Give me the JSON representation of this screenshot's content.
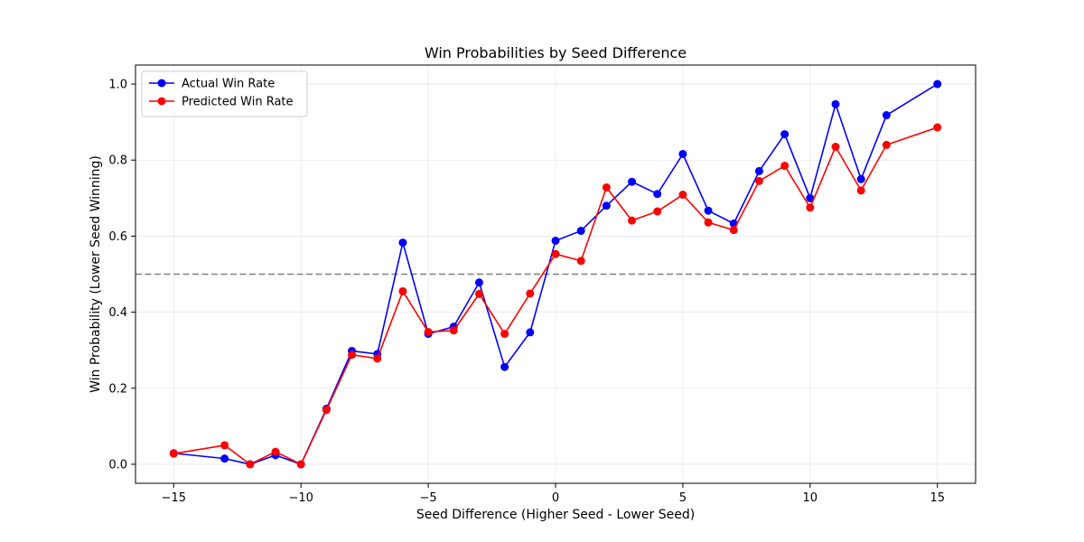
{
  "chart_data": {
    "type": "line",
    "title": "Win Probabilities by Seed Difference",
    "xlabel": "Seed Difference (Higher Seed - Lower Seed)",
    "ylabel": "Win Probability (Lower Seed Winning)",
    "xlim": [
      -16.5,
      16.5
    ],
    "ylim": [
      -0.05,
      1.05
    ],
    "xticks": [
      -15,
      -10,
      -5,
      0,
      5,
      10,
      15
    ],
    "xtick_labels": [
      "−15",
      "−10",
      "−5",
      "0",
      "5",
      "10",
      "15"
    ],
    "yticks": [
      0.0,
      0.2,
      0.4,
      0.6,
      0.8,
      1.0
    ],
    "ytick_labels": [
      "0.0",
      "0.2",
      "0.4",
      "0.6",
      "0.8",
      "1.0"
    ],
    "grid": true,
    "legend_position": "top-left",
    "reference_line": {
      "y": 0.5,
      "style": "dashed",
      "color": "#808080"
    },
    "x": [
      -15,
      -13,
      -12,
      -11,
      -10,
      -9,
      -8,
      -7,
      -6,
      -5,
      -4,
      -3,
      -2,
      -1,
      0,
      1,
      2,
      3,
      4,
      5,
      6,
      7,
      8,
      9,
      10,
      11,
      12,
      13,
      15
    ],
    "series": [
      {
        "name": "Actual Win Rate",
        "color": "#0000ff",
        "values": [
          0.029,
          0.015,
          0.0,
          0.024,
          0.0,
          0.146,
          0.298,
          0.29,
          0.583,
          0.343,
          0.362,
          0.478,
          0.256,
          0.347,
          0.588,
          0.614,
          0.68,
          0.743,
          0.711,
          0.816,
          0.667,
          0.633,
          0.771,
          0.868,
          0.7,
          0.947,
          0.75,
          0.918,
          1.0
        ]
      },
      {
        "name": "Predicted Win Rate",
        "color": "#ff0000",
        "values": [
          0.028,
          0.05,
          0.0,
          0.033,
          0.0,
          0.143,
          0.288,
          0.278,
          0.455,
          0.348,
          0.352,
          0.448,
          0.343,
          0.449,
          0.553,
          0.535,
          0.728,
          0.641,
          0.665,
          0.709,
          0.636,
          0.616,
          0.745,
          0.785,
          0.675,
          0.835,
          0.72,
          0.84,
          0.886
        ]
      }
    ]
  }
}
